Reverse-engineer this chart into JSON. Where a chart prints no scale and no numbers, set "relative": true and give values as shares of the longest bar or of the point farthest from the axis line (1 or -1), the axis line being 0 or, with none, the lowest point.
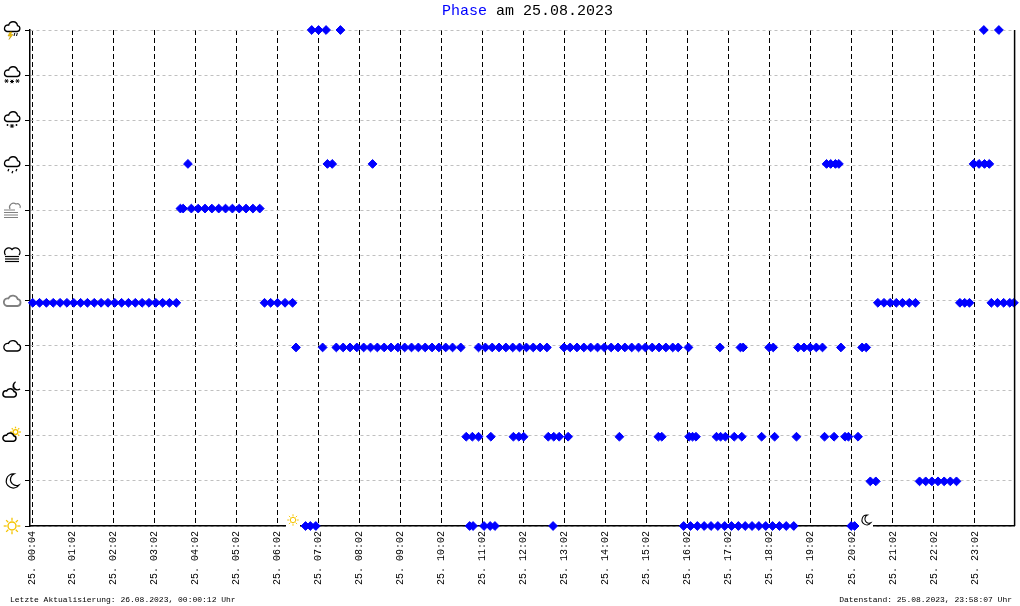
{
  "chart_data": {
    "type": "scatter",
    "title": "am 25.08.2023",
    "annotations": [
      "Letzte Aktualisierung: 26.08.2023, 00:00:12 Uhr",
      "Datenstand: 25.08.2023, 23:58:07 Uhr"
    ],
    "x": [
      "2023-08-25T00:04",
      "2023-08-25T00:14",
      "2023-08-25T00:24",
      "2023-08-25T00:34",
      "2023-08-25T00:44",
      "2023-08-25T00:54",
      "2023-08-25T01:04",
      "2023-08-25T01:14",
      "2023-08-25T01:24",
      "2023-08-25T01:34",
      "2023-08-25T01:44",
      "2023-08-25T01:54",
      "2023-08-25T02:04",
      "2023-08-25T02:14",
      "2023-08-25T02:24",
      "2023-08-25T02:34",
      "2023-08-25T02:44",
      "2023-08-25T02:54",
      "2023-08-25T03:04",
      "2023-08-25T03:14",
      "2023-08-25T03:24",
      "2023-08-25T03:34",
      "2023-08-25T03:40",
      "2023-08-25T03:44",
      "2023-08-25T03:51",
      "2023-08-25T03:56",
      "2023-08-25T04:06",
      "2023-08-25T04:16",
      "2023-08-25T04:26",
      "2023-08-25T04:36",
      "2023-08-25T04:46",
      "2023-08-25T04:56",
      "2023-08-25T05:06",
      "2023-08-25T05:16",
      "2023-08-25T05:26",
      "2023-08-25T05:36",
      "2023-08-25T05:43",
      "2023-08-25T05:52",
      "2023-08-25T06:02",
      "2023-08-25T06:13",
      "2023-08-25T06:24",
      "2023-08-25T06:29",
      "2023-08-25T06:43",
      "2023-08-25T06:50",
      "2023-08-25T06:52",
      "2023-08-25T06:58",
      "2023-08-25T07:02",
      "2023-08-25T07:08",
      "2023-08-25T07:13",
      "2023-08-25T07:15",
      "2023-08-25T07:22",
      "2023-08-25T07:28",
      "2023-08-25T07:34",
      "2023-08-25T07:38",
      "2023-08-25T07:48",
      "2023-08-25T07:58",
      "2023-08-25T08:08",
      "2023-08-25T08:18",
      "2023-08-25T08:21",
      "2023-08-25T08:28",
      "2023-08-25T08:38",
      "2023-08-25T08:48",
      "2023-08-25T08:58",
      "2023-08-25T09:08",
      "2023-08-25T09:18",
      "2023-08-25T09:28",
      "2023-08-25T09:38",
      "2023-08-25T09:48",
      "2023-08-25T09:58",
      "2023-08-25T10:08",
      "2023-08-25T10:18",
      "2023-08-25T10:30",
      "2023-08-25T10:38",
      "2023-08-25T10:43",
      "2023-08-25T10:47",
      "2023-08-25T10:48",
      "2023-08-25T10:56",
      "2023-08-25T10:56",
      "2023-08-25T11:04",
      "2023-08-25T11:06",
      "2023-08-25T11:13",
      "2023-08-25T11:14",
      "2023-08-25T11:16",
      "2023-08-25T11:20",
      "2023-08-25T11:26",
      "2023-08-25T11:36",
      "2023-08-25T11:46",
      "2023-08-25T11:47",
      "2023-08-25T11:55",
      "2023-08-25T11:56",
      "2023-08-25T12:02",
      "2023-08-25T12:06",
      "2023-08-25T12:16",
      "2023-08-25T12:26",
      "2023-08-25T12:36",
      "2023-08-25T12:38",
      "2023-08-25T12:45",
      "2023-08-25T12:46",
      "2023-08-25T12:54",
      "2023-08-25T13:01",
      "2023-08-25T13:07",
      "2023-08-25T13:10",
      "2023-08-25T13:20",
      "2023-08-25T13:30",
      "2023-08-25T13:40",
      "2023-08-25T13:50",
      "2023-08-25T14:00",
      "2023-08-25T14:10",
      "2023-08-25T14:20",
      "2023-08-25T14:22",
      "2023-08-25T14:30",
      "2023-08-25T14:40",
      "2023-08-25T14:50",
      "2023-08-25T15:00",
      "2023-08-25T15:10",
      "2023-08-25T15:19",
      "2023-08-25T15:20",
      "2023-08-25T15:24",
      "2023-08-25T15:30",
      "2023-08-25T15:40",
      "2023-08-25T15:48",
      "2023-08-25T15:56",
      "2023-08-25T16:03",
      "2023-08-25T16:04",
      "2023-08-25T16:06",
      "2023-08-25T16:09",
      "2023-08-25T16:14",
      "2023-08-25T16:16",
      "2023-08-25T16:26",
      "2023-08-25T16:36",
      "2023-08-25T16:44",
      "2023-08-25T16:46",
      "2023-08-25T16:49",
      "2023-08-25T16:50",
      "2023-08-25T16:56",
      "2023-08-25T16:57",
      "2023-08-25T17:06",
      "2023-08-25T17:10",
      "2023-08-25T17:16",
      "2023-08-25T17:19",
      "2023-08-25T17:21",
      "2023-08-25T17:23",
      "2023-08-25T17:26",
      "2023-08-25T17:36",
      "2023-08-25T17:46",
      "2023-08-25T17:50",
      "2023-08-25T17:56",
      "2023-08-25T18:01",
      "2023-08-25T18:06",
      "2023-08-25T18:07",
      "2023-08-25T18:09",
      "2023-08-25T18:16",
      "2023-08-25T18:26",
      "2023-08-25T18:37",
      "2023-08-25T18:41",
      "2023-08-25T18:43",
      "2023-08-25T18:52",
      "2023-08-25T19:01",
      "2023-08-25T19:10",
      "2023-08-25T19:19",
      "2023-08-25T19:22",
      "2023-08-25T19:25",
      "2023-08-25T19:31",
      "2023-08-25T19:36",
      "2023-08-25T19:38",
      "2023-08-25T19:43",
      "2023-08-25T19:46",
      "2023-08-25T19:52",
      "2023-08-25T19:57",
      "2023-08-25T20:01",
      "2023-08-25T20:06",
      "2023-08-25T20:11",
      "2023-08-25T20:17",
      "2023-08-25T20:23",
      "2023-08-25T20:29",
      "2023-08-25T20:37",
      "2023-08-25T20:40",
      "2023-08-25T20:49",
      "2023-08-25T20:58",
      "2023-08-25T21:07",
      "2023-08-25T21:16",
      "2023-08-25T21:26",
      "2023-08-25T21:35",
      "2023-08-25T21:41",
      "2023-08-25T21:50",
      "2023-08-25T21:59",
      "2023-08-25T22:08",
      "2023-08-25T22:17",
      "2023-08-25T22:26",
      "2023-08-25T22:35",
      "2023-08-25T22:40",
      "2023-08-25T22:47",
      "2023-08-25T22:54",
      "2023-08-25T23:00",
      "2023-08-25T23:08",
      "2023-08-25T23:15",
      "2023-08-25T23:16",
      "2023-08-25T23:23",
      "2023-08-25T23:26",
      "2023-08-25T23:35",
      "2023-08-25T23:37",
      "2023-08-25T23:44",
      "2023-08-25T23:53",
      "2023-08-25T23:59"
    ],
    "series": [
      {
        "name": "Phase",
        "color": "#0000ff",
        "values": [
          0.45,
          0.45,
          0.45,
          0.45,
          0.45,
          0.45,
          0.45,
          0.45,
          0.45,
          0.45,
          0.45,
          0.45,
          0.45,
          0.45,
          0.45,
          0.45,
          0.45,
          0.45,
          0.45,
          0.45,
          0.45,
          0.45,
          0.64,
          0.64,
          0.73,
          0.64,
          0.64,
          0.64,
          0.64,
          0.64,
          0.64,
          0.64,
          0.64,
          0.64,
          0.64,
          0.64,
          0.45,
          0.45,
          0.45,
          0.45,
          0.45,
          0.36,
          0,
          0,
          1,
          0,
          1,
          0.36,
          1,
          0.73,
          0.73,
          0.36,
          1,
          0.36,
          0.36,
          0.36,
          0.36,
          0.36,
          0.73,
          0.36,
          0.36,
          0.36,
          0.36,
          0.36,
          0.36,
          0.36,
          0.36,
          0.36,
          0.36,
          0.36,
          0.36,
          0.36,
          0.18,
          0,
          0.18,
          0,
          0.18,
          0.36,
          0,
          0.36,
          0,
          0.18,
          0.36,
          0,
          0.36,
          0.36,
          0.36,
          0.18,
          0.18,
          0.36,
          0.18,
          0.36,
          0.36,
          0.36,
          0.36,
          0.18,
          0,
          0.18,
          0.18,
          0.36,
          0.18,
          0.36,
          0.36,
          0.36,
          0.36,
          0.36,
          0.36,
          0.36,
          0.36,
          0.18,
          0.36,
          0.36,
          0.36,
          0.36,
          0.36,
          0.18,
          0.36,
          0.18,
          0.36,
          0.36,
          0.36,
          0,
          0.36,
          0.18,
          0,
          0.18,
          0.18,
          0,
          0,
          0,
          0.18,
          0,
          0.36,
          0.18,
          0,
          0.18,
          0,
          0.18,
          0,
          0.36,
          0.18,
          0.36,
          0,
          0,
          0,
          0.18,
          0,
          0.36,
          0,
          0.36,
          0.18,
          0,
          0,
          0,
          0.18,
          0.36,
          0.36,
          0.36,
          0.36,
          0.36,
          0.18,
          0.73,
          0.73,
          0.18,
          0.73,
          0.73,
          0.36,
          0.18,
          0.18,
          0,
          0,
          0.18,
          0.36,
          0.36,
          0.09,
          0.09,
          0.45,
          0.45,
          0.45,
          0.45,
          0.45,
          0.45,
          0.45,
          0.09,
          0.09,
          0.09,
          0.09,
          0.09,
          0.09,
          0.09,
          0.45,
          0.45,
          0.45,
          0.73,
          0.73,
          1,
          0.73,
          0.73,
          0.45,
          0.45,
          1,
          0.45,
          0.45,
          0.45
        ]
      }
    ],
    "relative": true,
    "xlim": [
      "2023-08-25T00:00",
      "2023-08-26T00:00"
    ],
    "xticks": [
      {
        "value": "2023-08-25T00:04",
        "label": "25. 00:04"
      },
      {
        "value": "2023-08-25T01:02",
        "label": "25. 01:02"
      },
      {
        "value": "2023-08-25T02:02",
        "label": "25. 02:02"
      },
      {
        "value": "2023-08-25T03:02",
        "label": "25. 03:02"
      },
      {
        "value": "2023-08-25T04:02",
        "label": "25. 04:02"
      },
      {
        "value": "2023-08-25T05:02",
        "label": "25. 05:02"
      },
      {
        "value": "2023-08-25T06:02",
        "label": "25. 06:02"
      },
      {
        "value": "2023-08-25T07:02",
        "label": "25. 07:02"
      },
      {
        "value": "2023-08-25T08:02",
        "label": "25. 08:02"
      },
      {
        "value": "2023-08-25T09:02",
        "label": "25. 09:02"
      },
      {
        "value": "2023-08-25T10:02",
        "label": "25. 10:02"
      },
      {
        "value": "2023-08-25T11:02",
        "label": "25. 11:02"
      },
      {
        "value": "2023-08-25T12:02",
        "label": "25. 12:02"
      },
      {
        "value": "2023-08-25T13:02",
        "label": "25. 13:02"
      },
      {
        "value": "2023-08-25T14:02",
        "label": "25. 14:02"
      },
      {
        "value": "2023-08-25T15:02",
        "label": "25. 15:02"
      },
      {
        "value": "2023-08-25T16:02",
        "label": "25. 16:02"
      },
      {
        "value": "2023-08-25T17:02",
        "label": "25. 17:02"
      },
      {
        "value": "2023-08-25T18:02",
        "label": "25. 18:02"
      },
      {
        "value": "2023-08-25T19:02",
        "label": "25. 19:02"
      },
      {
        "value": "2023-08-25T20:02",
        "label": "25. 20:02"
      },
      {
        "value": "2023-08-25T21:02",
        "label": "25. 21:02"
      },
      {
        "value": "2023-08-25T22:02",
        "label": "25. 22:02"
      },
      {
        "value": "2023-08-25T23:02",
        "label": "25. 23:02"
      }
    ],
    "grid": true,
    "tick_labels": "x",
    "marker": "diamond"
  }
}
